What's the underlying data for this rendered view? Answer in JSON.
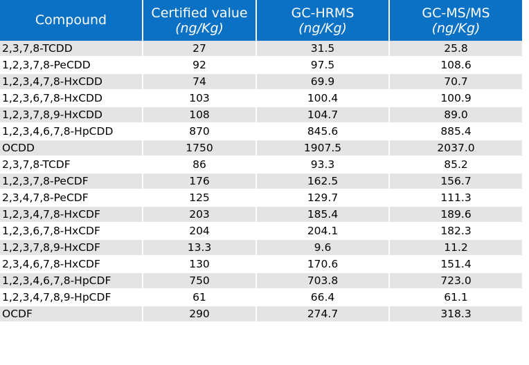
{
  "table": {
    "headers": [
      {
        "main": "Compound",
        "unit": ""
      },
      {
        "main": "Certified value",
        "unit": "(ng/Kg)"
      },
      {
        "main": "GC-HRMS",
        "unit": "(ng/Kg)"
      },
      {
        "main": "GC-MS/MS",
        "unit": "(ng/Kg)"
      }
    ],
    "rows": [
      [
        "2,3,7,8-TCDD",
        "27",
        "31.5",
        "25.8"
      ],
      [
        "1,2,3,7,8-PeCDD",
        "92",
        "97.5",
        "108.6"
      ],
      [
        "1,2,3,4,7,8-HxCDD",
        "74",
        "69.9",
        "70.7"
      ],
      [
        "1,2,3,6,7,8-HxCDD",
        "103",
        "100.4",
        "100.9"
      ],
      [
        "1,2,3,7,8,9-HxCDD",
        "108",
        "104.7",
        "89.0"
      ],
      [
        "1,2,3,4,6,7,8-HpCDD",
        "870",
        "845.6",
        "885.4"
      ],
      [
        "OCDD",
        "1750",
        "1907.5",
        "2037.0"
      ],
      [
        "2,3,7,8-TCDF",
        "86",
        "93.3",
        "85.2"
      ],
      [
        "1,2,3,7,8-PeCDF",
        "176",
        "162.5",
        "156.7"
      ],
      [
        "2,3,4,7,8-PeCDF",
        "125",
        "129.7",
        "111.3"
      ],
      [
        "1,2,3,4,7,8-HxCDF",
        "203",
        "185.4",
        "189.6"
      ],
      [
        "1,2,3,6,7,8-HxCDF",
        "204",
        "204.1",
        "182.3"
      ],
      [
        "1,2,3,7,8,9-HxCDF",
        "13.3",
        "9.6",
        "11.2"
      ],
      [
        "2,3,4,6,7,8-HxCDF",
        "130",
        "170.6",
        "151.4"
      ],
      [
        "1,2,3,4,6,7,8-HpCDF",
        "750",
        "703.8",
        "723.0"
      ],
      [
        "1,2,3,4,7,8,9-HpCDF",
        "61",
        "66.4",
        "61.1"
      ],
      [
        "OCDF",
        "290",
        "274.7",
        "318.3"
      ]
    ]
  },
  "colors": {
    "header_bg": "#0a71c4",
    "header_text": "#ffffff",
    "row_shaded": "#e4e4e4",
    "row_plain": "#ffffff"
  }
}
